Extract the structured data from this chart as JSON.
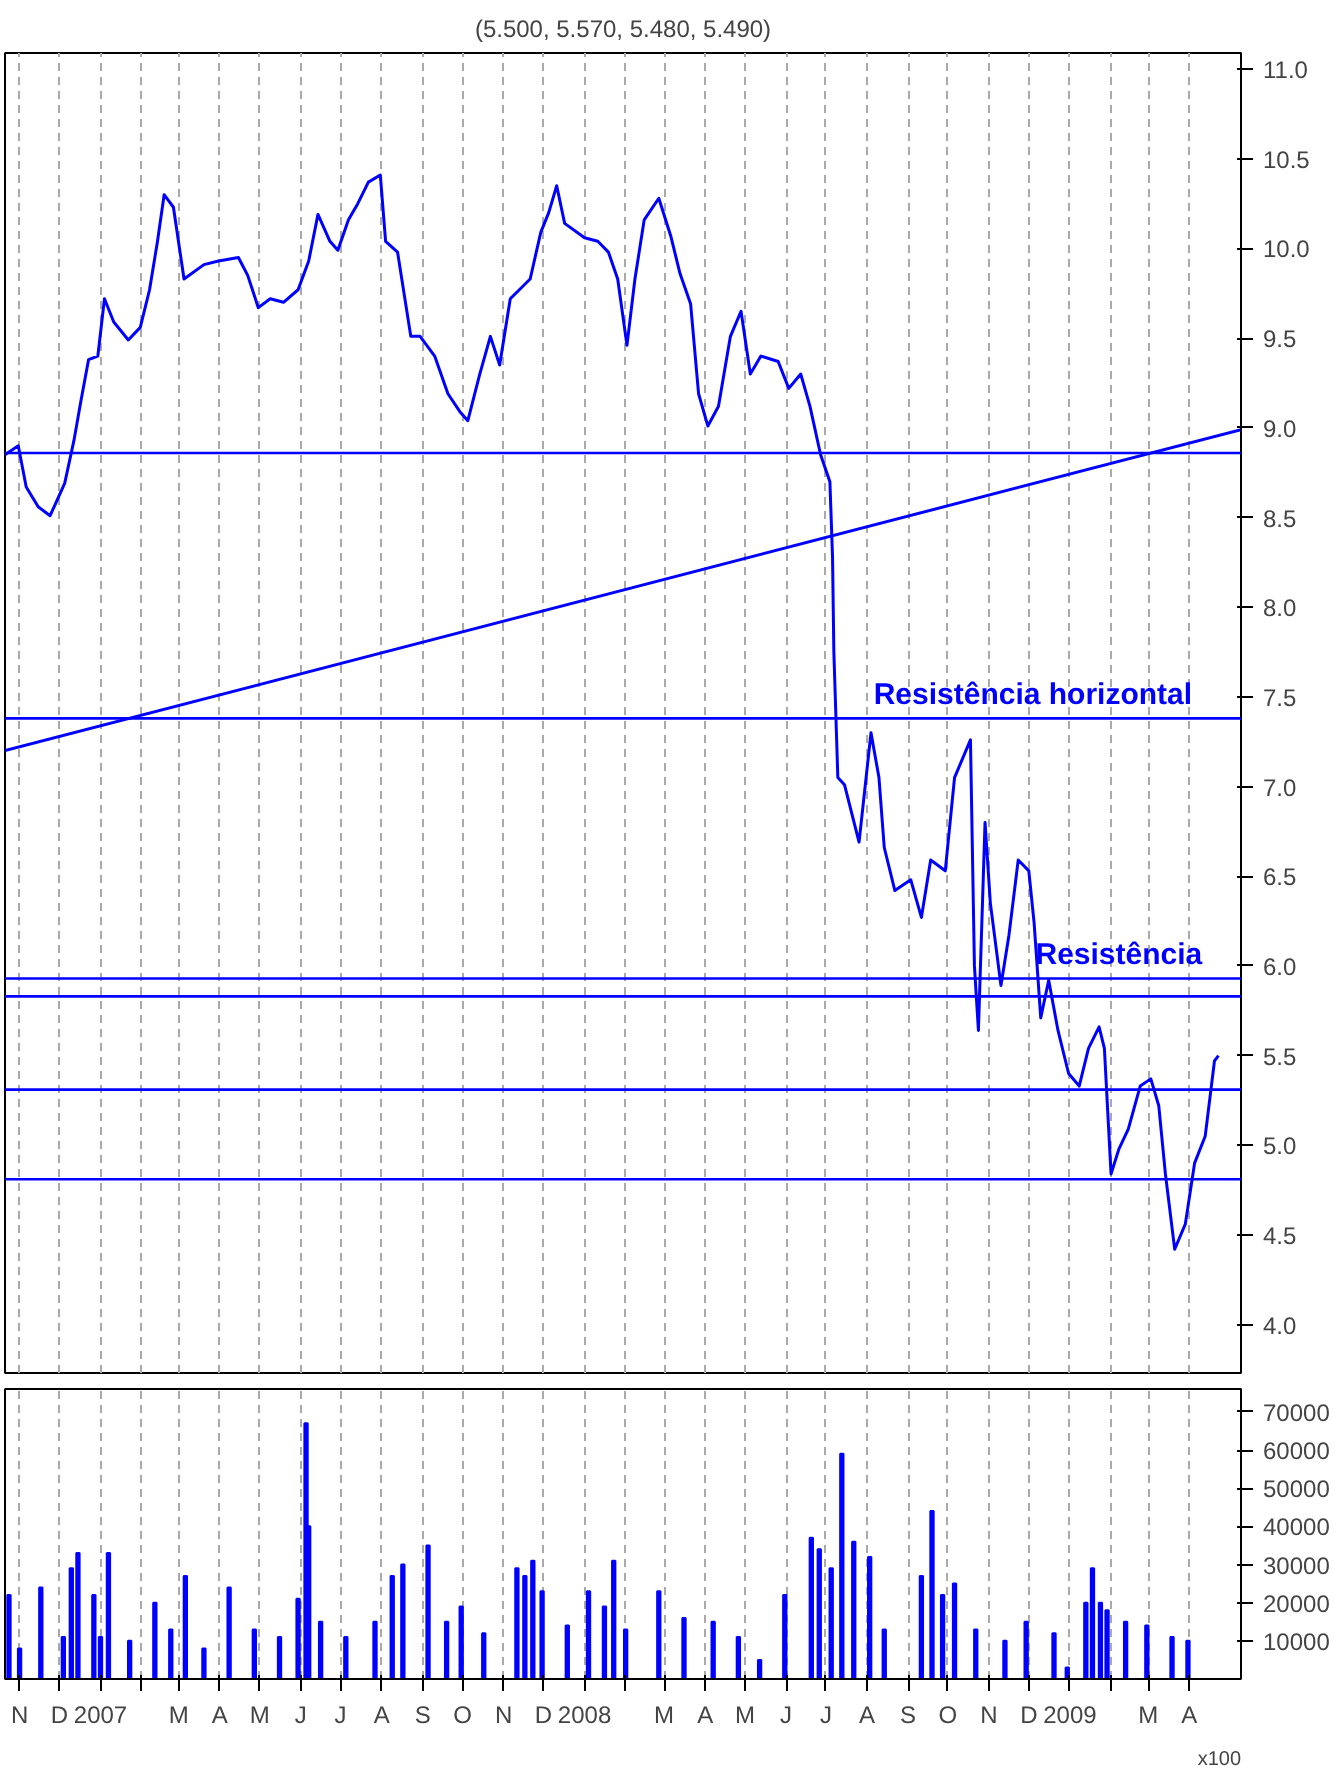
{
  "chart_data": [
    {
      "type": "line",
      "title": "(5.500, 5.570, 5.480, 5.490)",
      "xlim": [
        "2006-10-21",
        "2009-05-10"
      ],
      "ylim": [
        3.73,
        11.09
      ],
      "xticks": [
        {
          "value": "2006-11-01",
          "label": null
        },
        {
          "value": "2006-12-01",
          "label": null
        },
        {
          "value": "2007-01-01",
          "label": null
        },
        {
          "value": "2007-02-01",
          "label": null
        },
        {
          "value": "2007-03-01",
          "label": null
        },
        {
          "value": "2007-04-01",
          "label": null
        },
        {
          "value": "2007-05-01",
          "label": null
        },
        {
          "value": "2007-06-01",
          "label": null
        },
        {
          "value": "2007-07-01",
          "label": null
        },
        {
          "value": "2007-08-01",
          "label": null
        },
        {
          "value": "2007-09-01",
          "label": null
        },
        {
          "value": "2007-10-01",
          "label": null
        },
        {
          "value": "2007-11-01",
          "label": null
        },
        {
          "value": "2007-12-01",
          "label": null
        },
        {
          "value": "2008-01-01",
          "label": null
        },
        {
          "value": "2008-02-01",
          "label": null
        },
        {
          "value": "2008-03-01",
          "label": null
        },
        {
          "value": "2008-04-01",
          "label": null
        },
        {
          "value": "2008-05-01",
          "label": null
        },
        {
          "value": "2008-06-01",
          "label": null
        },
        {
          "value": "2008-07-01",
          "label": null
        },
        {
          "value": "2008-08-01",
          "label": null
        },
        {
          "value": "2008-09-01",
          "label": null
        },
        {
          "value": "2008-10-01",
          "label": null
        },
        {
          "value": "2008-11-01",
          "label": null
        },
        {
          "value": "2008-12-01",
          "label": null
        },
        {
          "value": "2009-01-01",
          "label": null
        },
        {
          "value": "2009-02-01",
          "label": null
        },
        {
          "value": "2009-03-01",
          "label": null
        },
        {
          "value": "2009-04-01",
          "label": null
        }
      ],
      "yticks": [
        {
          "value": 4,
          "label": "4.0"
        },
        {
          "value": 4.5,
          "label": "4.5"
        },
        {
          "value": 5,
          "label": "5.0"
        },
        {
          "value": 5.5,
          "label": "5.5"
        },
        {
          "value": 6,
          "label": "6.0"
        },
        {
          "value": 6.5,
          "label": "6.5"
        },
        {
          "value": 7,
          "label": "7.0"
        },
        {
          "value": 7.5,
          "label": "7.5"
        },
        {
          "value": 8,
          "label": "8.0"
        },
        {
          "value": 8.5,
          "label": "8.5"
        },
        {
          "value": 9,
          "label": "9.0"
        },
        {
          "value": 9.5,
          "label": "9.5"
        },
        {
          "value": 10,
          "label": "10.0"
        },
        {
          "value": 10.5,
          "label": "10.5"
        },
        {
          "value": 11,
          "label": "11.0"
        }
      ],
      "tick_labels": "y",
      "grid": "x",
      "x": [
        "2006-10-21",
        "2006-10-31",
        "2006-11-06",
        "2006-11-15",
        "2006-11-24",
        "2006-12-05",
        "2006-12-12",
        "2006-12-17",
        "2006-12-23",
        "2006-12-30",
        "2007-01-04",
        "2007-01-11",
        "2007-01-22",
        "2007-01-31",
        "2007-02-07",
        "2007-02-13",
        "2007-02-18",
        "2007-02-25",
        "2007-03-05",
        "2007-03-20",
        "2007-03-31",
        "2007-04-15",
        "2007-04-22",
        "2007-04-30",
        "2007-05-09",
        "2007-05-19",
        "2007-05-30",
        "2007-06-07",
        "2007-06-14",
        "2007-06-23",
        "2007-06-29",
        "2007-07-07",
        "2007-07-14",
        "2007-07-22",
        "2007-07-31",
        "2007-08-04",
        "2007-08-13",
        "2007-08-23",
        "2007-08-30",
        "2007-09-10",
        "2007-09-20",
        "2007-09-29",
        "2007-10-05",
        "2007-10-14",
        "2007-10-22",
        "2007-10-29",
        "2007-11-06",
        "2007-11-21",
        "2007-11-29",
        "2007-12-05",
        "2007-12-11",
        "2007-12-17",
        "2008-01-01",
        "2008-01-11",
        "2008-01-19",
        "2008-01-26",
        "2008-02-02",
        "2008-02-08",
        "2008-02-15",
        "2008-02-26",
        "2008-03-06",
        "2008-03-13",
        "2008-03-21",
        "2008-03-27",
        "2008-04-03",
        "2008-04-11",
        "2008-04-20",
        "2008-04-28",
        "2008-05-05",
        "2008-05-13",
        "2008-05-26",
        "2008-06-03",
        "2008-06-12",
        "2008-06-19",
        "2008-06-27",
        "2008-07-04",
        "2008-07-06",
        "2008-07-07",
        "2008-07-10",
        "2008-07-15",
        "2008-07-26",
        "2008-08-04",
        "2008-08-10",
        "2008-08-14",
        "2008-08-22",
        "2008-09-03",
        "2008-09-11",
        "2008-09-18",
        "2008-09-29",
        "2008-10-06",
        "2008-10-18",
        "2008-10-21",
        "2008-10-24",
        "2008-10-29",
        "2008-11-02",
        "2008-11-10",
        "2008-11-16",
        "2008-11-23",
        "2008-12-01",
        "2008-12-05",
        "2008-12-10",
        "2008-12-16",
        "2008-12-23",
        "2008-12-31",
        "2009-01-08",
        "2009-01-15",
        "2009-01-23",
        "2009-01-27",
        "2009-02-01",
        "2009-02-07",
        "2009-02-14",
        "2009-02-23",
        "2009-03-03",
        "2009-03-09",
        "2009-03-14",
        "2009-03-21",
        "2009-03-29",
        "2009-04-05",
        "2009-04-13",
        "2009-04-20",
        "2009-04-23"
      ],
      "series": [
        {
          "color": "#0000ff",
          "values": [
            8.85,
            8.9,
            8.67,
            8.56,
            8.51,
            8.69,
            8.93,
            9.14,
            9.38,
            9.4,
            9.72,
            9.59,
            9.49,
            9.56,
            9.77,
            10.04,
            10.3,
            10.23,
            9.83,
            9.91,
            9.93,
            9.95,
            9.85,
            9.67,
            9.72,
            9.7,
            9.77,
            9.93,
            10.19,
            10.04,
            9.99,
            10.16,
            10.25,
            10.37,
            10.41,
            10.04,
            9.98,
            9.51,
            9.51,
            9.4,
            9.19,
            9.09,
            9.04,
            9.3,
            9.51,
            9.35,
            9.72,
            9.83,
            10.09,
            10.2,
            10.35,
            10.14,
            10.06,
            10.04,
            9.98,
            9.83,
            9.46,
            9.83,
            10.16,
            10.28,
            10.07,
            9.86,
            9.69,
            9.19,
            9.01,
            9.12,
            9.51,
            9.65,
            9.3,
            9.4,
            9.37,
            9.22,
            9.3,
            9.12,
            8.85,
            8.7,
            8.28,
            7.75,
            7.05,
            7.01,
            6.69,
            7.3,
            7.05,
            6.66,
            6.42,
            6.48,
            6.27,
            6.59,
            6.53,
            7.05,
            7.26,
            6.0,
            5.64,
            6.8,
            6.35,
            5.89,
            6.17,
            6.59,
            6.53,
            6.24,
            5.71,
            5.92,
            5.64,
            5.4,
            5.33,
            5.54,
            5.66,
            5.54,
            4.84,
            4.98,
            5.09,
            5.33,
            5.37,
            5.22,
            4.84,
            4.42,
            4.56,
            4.9,
            5.05,
            5.47,
            5.5
          ]
        },
        {
          "type": "line",
          "color": "#0000ff",
          "x": [
            "2006-10-21",
            "2009-05-10"
          ],
          "values": [
            7.2,
            8.99
          ]
        }
      ],
      "ref_lines": [
        {
          "axis": "y",
          "value": 8.86,
          "color": "#0000ff"
        },
        {
          "axis": "y",
          "value": 7.38,
          "color": "#0000ff"
        },
        {
          "axis": "y",
          "value": 5.93,
          "color": "#0000ff"
        },
        {
          "axis": "y",
          "value": 5.83,
          "color": "#0000ff"
        },
        {
          "axis": "y",
          "value": 5.31,
          "color": "#0000ff"
        },
        {
          "axis": "y",
          "value": 4.81,
          "color": "#0000ff"
        }
      ],
      "annotations": [
        {
          "text": "Resistência horizontal",
          "x": "2008-08-03",
          "y": 7.38
        },
        {
          "text": "Resistência",
          "x": "2008-12-03",
          "y": 5.93
        }
      ]
    },
    {
      "type": "bar",
      "xlim": [
        "2006-10-21",
        "2009-05-10"
      ],
      "ylim": [
        0,
        76000
      ],
      "xticks": [
        {
          "value": "2006-11-01",
          "label": "N"
        },
        {
          "value": "2006-12-01",
          "label": "D"
        },
        {
          "value": "2007-01-01",
          "label": "2007"
        },
        {
          "value": "2007-02-01",
          "label": null
        },
        {
          "value": "2007-03-01",
          "label": "M"
        },
        {
          "value": "2007-04-01",
          "label": "A"
        },
        {
          "value": "2007-05-01",
          "label": "M"
        },
        {
          "value": "2007-06-01",
          "label": "J"
        },
        {
          "value": "2007-07-01",
          "label": "J"
        },
        {
          "value": "2007-08-01",
          "label": "A"
        },
        {
          "value": "2007-09-01",
          "label": "S"
        },
        {
          "value": "2007-10-01",
          "label": "O"
        },
        {
          "value": "2007-11-01",
          "label": "N"
        },
        {
          "value": "2007-12-01",
          "label": "D"
        },
        {
          "value": "2008-01-01",
          "label": "2008"
        },
        {
          "value": "2008-02-01",
          "label": null
        },
        {
          "value": "2008-03-01",
          "label": "M"
        },
        {
          "value": "2008-04-01",
          "label": "A"
        },
        {
          "value": "2008-05-01",
          "label": "M"
        },
        {
          "value": "2008-06-01",
          "label": "J"
        },
        {
          "value": "2008-07-01",
          "label": "J"
        },
        {
          "value": "2008-08-01",
          "label": "A"
        },
        {
          "value": "2008-09-01",
          "label": "S"
        },
        {
          "value": "2008-10-01",
          "label": "O"
        },
        {
          "value": "2008-11-01",
          "label": "N"
        },
        {
          "value": "2008-12-01",
          "label": "D"
        },
        {
          "value": "2009-01-01",
          "label": "2009"
        },
        {
          "value": "2009-02-01",
          "label": null
        },
        {
          "value": "2009-03-01",
          "label": "M"
        },
        {
          "value": "2009-04-01",
          "label": "A"
        }
      ],
      "yticks": [
        10000,
        20000,
        30000,
        40000,
        50000,
        60000,
        70000
      ],
      "grid": "x",
      "x": [
        "2006-10-24",
        "2006-11-01",
        "2006-11-17",
        "2006-12-04",
        "2006-12-10",
        "2006-12-15",
        "2006-12-27",
        "2007-01-01",
        "2007-01-07",
        "2007-01-23",
        "2007-02-11",
        "2007-02-23",
        "2007-03-06",
        "2007-03-20",
        "2007-04-08",
        "2007-04-27",
        "2007-05-16",
        "2007-05-30",
        "2007-06-05",
        "2007-06-07",
        "2007-06-16",
        "2007-07-05",
        "2007-07-27",
        "2007-08-09",
        "2007-08-17",
        "2007-09-05",
        "2007-09-19",
        "2007-09-30",
        "2007-10-17",
        "2007-11-11",
        "2007-11-17",
        "2007-11-23",
        "2007-11-30",
        "2007-12-19",
        "2008-01-04",
        "2008-01-16",
        "2008-01-23",
        "2008-02-01",
        "2008-02-26",
        "2008-03-16",
        "2008-04-07",
        "2008-04-26",
        "2008-05-12",
        "2008-05-31",
        "2008-06-20",
        "2008-06-26",
        "2008-07-05",
        "2008-07-13",
        "2008-07-22",
        "2008-08-03",
        "2008-08-14",
        "2008-09-11",
        "2008-09-19",
        "2008-09-27",
        "2008-10-06",
        "2008-10-22",
        "2008-11-13",
        "2008-11-29",
        "2008-12-20",
        "2008-12-30",
        "2009-01-13",
        "2009-01-18",
        "2009-01-24",
        "2009-01-29",
        "2009-02-12",
        "2009-02-28",
        "2009-03-19",
        "2009-03-31"
      ],
      "series": [
        {
          "color": "#0000ff",
          "values": [
            22000,
            8000,
            24000,
            11000,
            29000,
            33000,
            22000,
            11000,
            33000,
            10000,
            20000,
            13000,
            27000,
            8000,
            24000,
            13000,
            11000,
            21000,
            67000,
            40000,
            15000,
            11000,
            15000,
            27000,
            30000,
            35000,
            15000,
            19000,
            12000,
            29000,
            27000,
            31000,
            23000,
            14000,
            23000,
            19000,
            31000,
            13000,
            23000,
            16000,
            15000,
            11000,
            5000,
            22000,
            37000,
            34000,
            29000,
            59000,
            36000,
            32000,
            13000,
            27000,
            44000,
            22000,
            25000,
            13000,
            10000,
            15000,
            12000,
            3000,
            20000,
            29000,
            20000,
            18000,
            15000,
            14000,
            11000,
            10000
          ]
        }
      ],
      "annotations": [
        "x100"
      ]
    }
  ]
}
